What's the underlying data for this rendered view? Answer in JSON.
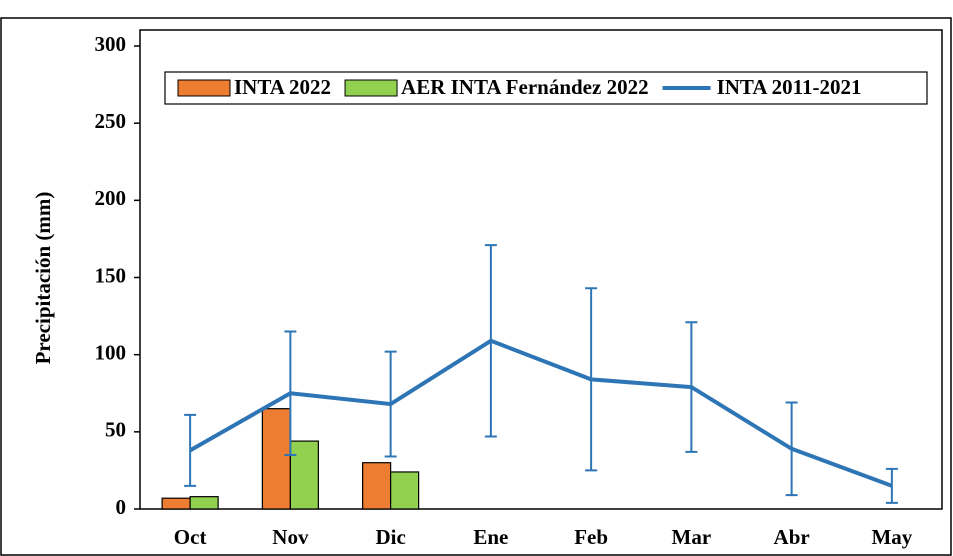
{
  "chart_data": {
    "type": "bar",
    "y_label": "Precipitación (mm)",
    "categories": [
      "Oct",
      "Nov",
      "Dic",
      "Ene",
      "Feb",
      "Mar",
      "Abr",
      "May"
    ],
    "series": [
      {
        "name": "INTA 2022",
        "color": "#ed7d31",
        "values": [
          7,
          65,
          30,
          null,
          null,
          null,
          null,
          null
        ]
      },
      {
        "name": "AER INTA Fernández 2022",
        "color": "#92d050",
        "values": [
          8,
          44,
          24,
          null,
          null,
          null,
          null,
          null
        ]
      },
      {
        "name": "INTA 2011-2021",
        "type": "line",
        "color": "#2e75b6",
        "values": [
          38,
          75,
          68,
          109,
          84,
          79,
          39,
          15
        ],
        "errors": [
          23,
          40,
          34,
          62,
          59,
          42,
          30,
          11
        ]
      }
    ],
    "ylim": [
      0,
      300
    ],
    "yticks": [
      0,
      50,
      100,
      150,
      200,
      250,
      300
    ],
    "legend": "top"
  }
}
